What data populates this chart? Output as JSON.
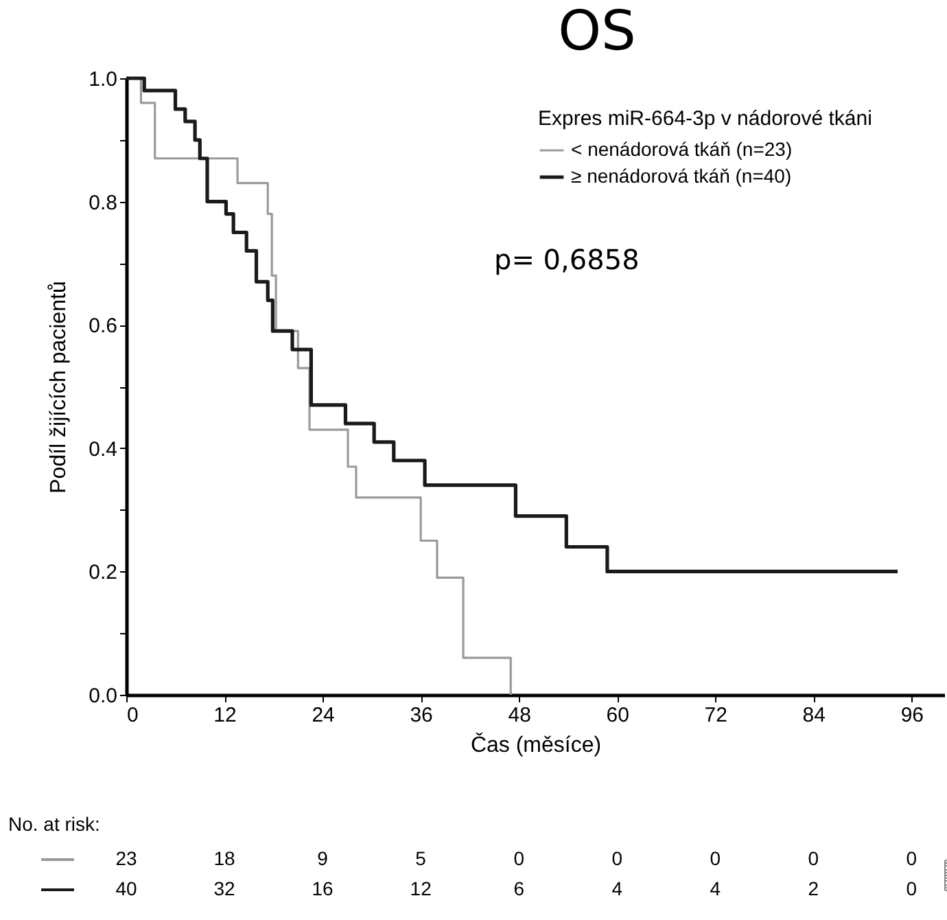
{
  "chart_data": {
    "type": "step",
    "title": "OS",
    "xlabel": "Čas (měsíce)",
    "ylabel": "Podíl žijících pacientů",
    "legend_title": "Expres miR-664-3p v  nádorové tkáni",
    "legend": "top right",
    "xlim": [
      0,
      100
    ],
    "xticks": [
      0,
      12,
      24,
      36,
      48,
      60,
      72,
      84,
      96
    ],
    "ylim": [
      0,
      1
    ],
    "yticks": [
      {
        "value": 0,
        "label": "0.0"
      },
      {
        "value": 0.1,
        "label": null
      },
      {
        "value": 0.2,
        "label": "0.2"
      },
      {
        "value": 0.3,
        "label": null
      },
      {
        "value": 0.4,
        "label": "0.4"
      },
      {
        "value": 0.5,
        "label": null
      },
      {
        "value": 0.6,
        "label": "0.6"
      },
      {
        "value": 0.7,
        "label": null
      },
      {
        "value": 0.8,
        "label": "0.8"
      },
      {
        "value": 0.9,
        "label": null
      },
      {
        "value": 1,
        "label": "1.0"
      }
    ],
    "series": [
      {
        "name": "< nenádorová tkáň (n=23)",
        "color": "#9a9a9a",
        "x": [
          0,
          1.8,
          3.5,
          13.6,
          17.3,
          17.8,
          18.3,
          21,
          22.4,
          27.1,
          28.1,
          36,
          38,
          41.2,
          47
        ],
        "values": [
          1,
          0.96,
          0.87,
          0.83,
          0.78,
          0.68,
          0.59,
          0.53,
          0.43,
          0.37,
          0.32,
          0.25,
          0.19,
          0.06,
          0
        ]
      },
      {
        "name": "≥ nenádorová tkáň (n=40)",
        "color": "#1a1a1a",
        "x": [
          0,
          2.2,
          6,
          7.2,
          8.4,
          9,
          9.9,
          12.2,
          13.1,
          14.7,
          15.9,
          17.3,
          17.9,
          20.3,
          22.6,
          26.8,
          30.3,
          32.7,
          36.5,
          47.6,
          53.8,
          58.8,
          94.3
        ],
        "values": [
          1,
          0.98,
          0.95,
          0.93,
          0.9,
          0.87,
          0.8,
          0.78,
          0.75,
          0.72,
          0.67,
          0.64,
          0.59,
          0.56,
          0.47,
          0.44,
          0.41,
          0.38,
          0.34,
          0.29,
          0.24,
          0.2,
          0.2
        ]
      }
    ],
    "annotations": [
      "p= 0,6858",
      "No. at risk:",
      "23",
      "18",
      "9",
      "5",
      "0",
      "0",
      "0",
      "0",
      "0",
      "40",
      "32",
      "16",
      "12",
      "6",
      "4",
      "4",
      "2",
      "0"
    ]
  }
}
